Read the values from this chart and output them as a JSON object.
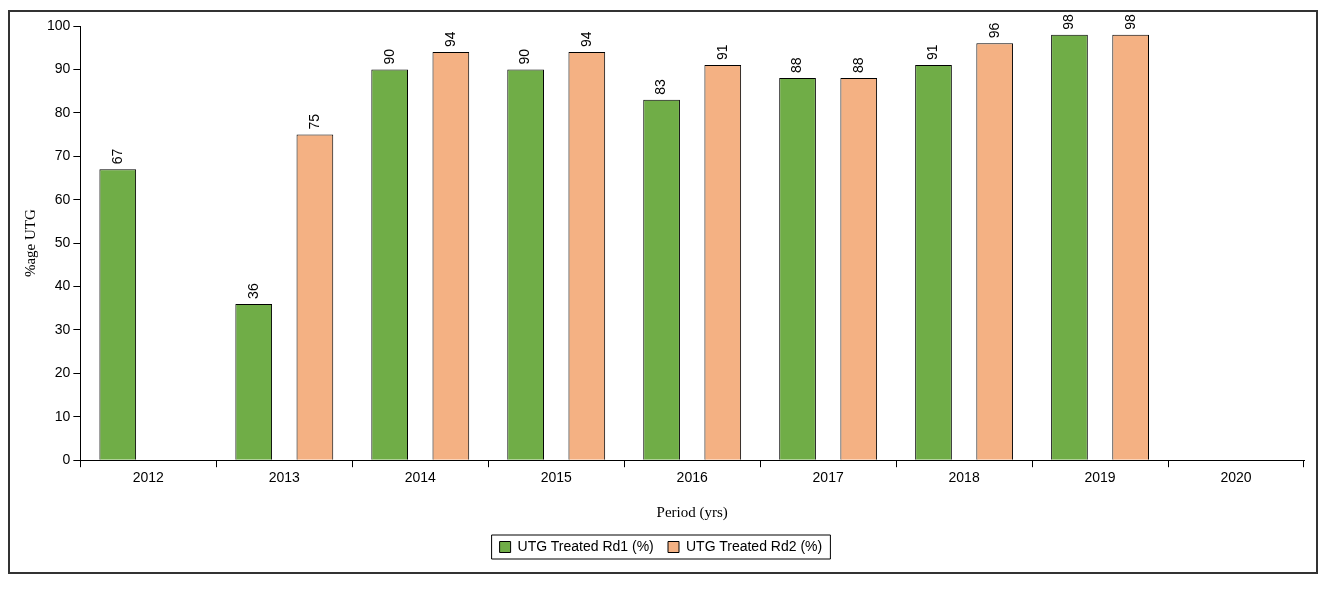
{
  "chart_data": {
    "type": "bar",
    "xlabel": "Period (yrs)",
    "ylabel": "%age UTG",
    "categories": [
      "2012",
      "2013",
      "2014",
      "2015",
      "2016",
      "2017",
      "2018",
      "2019",
      "2020"
    ],
    "series": [
      {
        "name": "UTG Treated Rd1 (%)",
        "color": "#70ad47",
        "values": [
          67,
          36,
          90,
          90,
          83,
          88,
          91,
          98,
          null
        ]
      },
      {
        "name": "UTG Treated Rd2 (%)",
        "color": "#f4b183",
        "values": [
          null,
          75,
          94,
          94,
          91,
          88,
          96,
          98,
          null
        ]
      }
    ],
    "ylim": [
      0,
      100
    ],
    "yticks": [
      0,
      10,
      20,
      30,
      40,
      50,
      60,
      70,
      80,
      90,
      100
    ],
    "data_labels": true,
    "legend": "bottom"
  }
}
